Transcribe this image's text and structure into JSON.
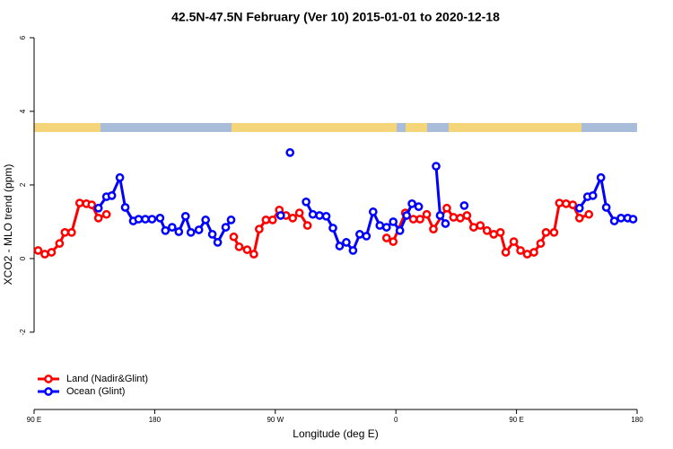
{
  "chart_data": {
    "type": "line",
    "title": "42.5N-47.5N February (Ver 10)   2015-01-01 to 2020-12-18",
    "x_label": "Longitude (deg E)",
    "y_label": "XCO2 - MLO trend (ppm)",
    "xlim": [
      90,
      540
    ],
    "ylim": [
      -4.1,
      6.3
    ],
    "xticks": [
      {
        "value": 90,
        "label": "90 E"
      },
      180,
      {
        "value": 270,
        "label": "90 W"
      },
      {
        "value": 360,
        "label": "0"
      },
      {
        "value": 450,
        "label": "90 E"
      },
      {
        "value": 540,
        "label": "180"
      }
    ],
    "yticks": [
      -2,
      0,
      2,
      4,
      6
    ],
    "legend": "bottom-left",
    "series": [
      {
        "name": "Land (Nadir&Glint)",
        "color": "#ff0000",
        "x": [
          93,
          98,
          103,
          109,
          113,
          118,
          124,
          129,
          133,
          138,
          144,
          null,
          239,
          243,
          249,
          254,
          258,
          263,
          268,
          273,
          278,
          283,
          288,
          294,
          null,
          353,
          358,
          367,
          373,
          378,
          383,
          388,
          398,
          403,
          408,
          413,
          418,
          423,
          428,
          433,
          438,
          442,
          448,
          453,
          458,
          463,
          468,
          472,
          478,
          482,
          487,
          492,
          497,
          504
        ],
        "values": [
          0.22,
          0.12,
          0.17,
          0.41,
          0.71,
          0.71,
          1.51,
          1.49,
          1.46,
          1.1,
          1.2,
          null,
          0.59,
          0.32,
          0.24,
          0.12,
          0.8,
          1.05,
          1.05,
          1.32,
          1.17,
          1.1,
          1.24,
          0.9,
          null,
          0.56,
          0.46,
          1.24,
          1.07,
          1.07,
          1.2,
          0.8,
          1.37,
          1.12,
          1.1,
          1.17,
          0.85,
          0.9,
          0.76,
          0.66,
          0.71,
          0.17,
          0.46,
          0.22,
          0.12,
          0.17,
          0.41,
          0.71,
          0.71,
          1.51,
          1.49,
          1.46,
          1.1,
          1.2
        ]
      },
      {
        "name": "Ocean (Glint)",
        "color": "#0000ff",
        "x": [
          138,
          144,
          148,
          154,
          158,
          164,
          168,
          173,
          178,
          184,
          188,
          193,
          198,
          203,
          207,
          213,
          218,
          223,
          227,
          233,
          237,
          null,
          274,
          null,
          281,
          null,
          293,
          298,
          303,
          308,
          313,
          318,
          323,
          328,
          333,
          338,
          343,
          348,
          353,
          358,
          363,
          368,
          372,
          377,
          null,
          390,
          393,
          397,
          null,
          411,
          null,
          497,
          503,
          507,
          513,
          517,
          523,
          528,
          533,
          537
        ],
        "values": [
          1.37,
          1.68,
          1.71,
          2.2,
          1.39,
          1.02,
          1.07,
          1.07,
          1.07,
          1.1,
          0.76,
          0.85,
          0.73,
          1.15,
          0.71,
          0.78,
          1.05,
          0.66,
          0.44,
          0.85,
          1.05,
          null,
          1.17,
          null,
          2.88,
          null,
          1.54,
          1.2,
          1.17,
          1.15,
          0.83,
          0.34,
          0.44,
          0.22,
          0.66,
          0.61,
          1.27,
          0.9,
          0.85,
          1.0,
          0.76,
          1.17,
          1.49,
          1.41,
          null,
          2.51,
          1.17,
          0.95,
          null,
          1.44,
          null,
          1.37,
          1.68,
          1.71,
          2.2,
          1.39,
          1.02,
          1.1,
          1.1,
          1.07
        ]
      }
    ]
  }
}
